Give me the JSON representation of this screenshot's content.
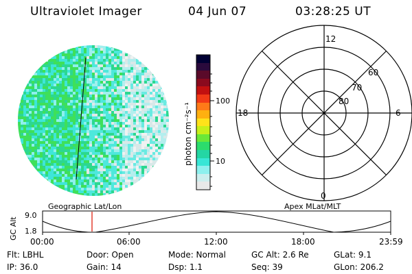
{
  "header": {
    "title": "Ultraviolet Imager",
    "date": "04 Jun 07",
    "time": "03:28:25 UT"
  },
  "colorbar": {
    "unit_label": "photon cm⁻²s⁻¹",
    "tick_labels": [
      "100",
      "10"
    ],
    "colors": [
      "#000033",
      "#2a0a3c",
      "#5a0a2a",
      "#8a0a1e",
      "#c21010",
      "#f23a16",
      "#ff7a18",
      "#ffb010",
      "#ffe21a",
      "#c8ef1a",
      "#6ae838",
      "#2cdc6c",
      "#24d6a4",
      "#38e6d6",
      "#8ef0ee",
      "#cceeee",
      "#e8e8e8"
    ]
  },
  "polar": {
    "mlt_labels": [
      "12",
      "18",
      "6",
      "0"
    ],
    "lat_labels": [
      "60",
      "70",
      "80"
    ]
  },
  "projection_labels": {
    "left": "Geographic Lat/Lon",
    "right": "Apex MLat/MLT"
  },
  "altitude_strip": {
    "axis_label": "GC Alt",
    "y_ticks": [
      "9.0",
      "1.8"
    ],
    "x_ticks": [
      "00:00",
      "06:00",
      "12:00",
      "18:00",
      "23:59"
    ]
  },
  "info": {
    "row1": {
      "flt": "Flt: LBHL",
      "door": "Door: Open",
      "mode": "Mode: Normal",
      "gcalt": "GC Alt: 2.6 Re",
      "glat": "GLat:   9.1"
    },
    "row2": {
      "ip": "IP: 36.0",
      "gain": "Gain: 14",
      "dsp": "Dsp:     1.1",
      "seq": "Seq: 39",
      "glon": "GLon: 206.2"
    }
  }
}
